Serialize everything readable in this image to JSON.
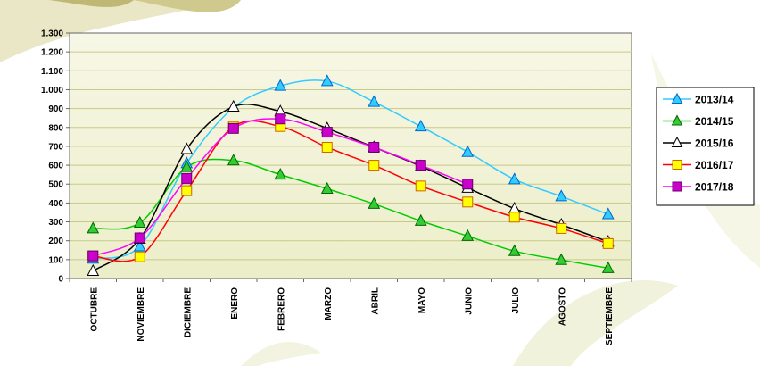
{
  "chart_data": {
    "type": "line",
    "title": "",
    "xlabel": "",
    "ylabel": "",
    "categories": [
      "OCTUBRE",
      "NOVIEMBRE",
      "DICIEMBRE",
      "ENERO",
      "FEBRERO",
      "MARZO",
      "ABRIL",
      "MAYO",
      "JUNIO",
      "JULIO",
      "AGOSTO",
      "SEPTIEMBRE"
    ],
    "ylim": [
      0,
      1300
    ],
    "yticks": [
      0,
      100,
      200,
      300,
      400,
      500,
      600,
      700,
      800,
      900,
      1000,
      1100,
      1200,
      1300
    ],
    "ytick_labels": [
      "0",
      "100",
      "200",
      "300",
      "400",
      "500",
      "600",
      "700",
      "800",
      "900",
      "1.000",
      "1.100",
      "1.200",
      "1.300"
    ],
    "grid": true,
    "legend_position": "right",
    "series": [
      {
        "name": "2013/14",
        "color": "#33ccff",
        "marker": "triangle",
        "marker_fill": "#33ccff",
        "values": [
          105,
          170,
          610,
          905,
          1020,
          1045,
          935,
          805,
          670,
          525,
          435,
          340
        ]
      },
      {
        "name": "2014/15",
        "color": "#00cc00",
        "marker": "triangle",
        "marker_fill": "#33cc33",
        "values": [
          265,
          295,
          590,
          625,
          550,
          475,
          395,
          305,
          225,
          145,
          98,
          55
        ]
      },
      {
        "name": "2015/16",
        "color": "#000000",
        "marker": "triangle",
        "marker_fill": "#ffffff",
        "values": [
          40,
          210,
          685,
          910,
          885,
          795,
          695,
          595,
          480,
          370,
          285,
          195
        ]
      },
      {
        "name": "2016/17",
        "color": "#ff0000",
        "marker": "square",
        "marker_fill": "#ffff00",
        "values": [
          120,
          115,
          465,
          805,
          805,
          695,
          600,
          490,
          405,
          325,
          265,
          185
        ]
      },
      {
        "name": "2017/18",
        "color": "#ff00ff",
        "marker": "square",
        "marker_fill": "#cc00cc",
        "values": [
          120,
          215,
          530,
          795,
          845,
          775,
          695,
          600,
          500,
          null,
          null,
          null
        ]
      }
    ]
  }
}
